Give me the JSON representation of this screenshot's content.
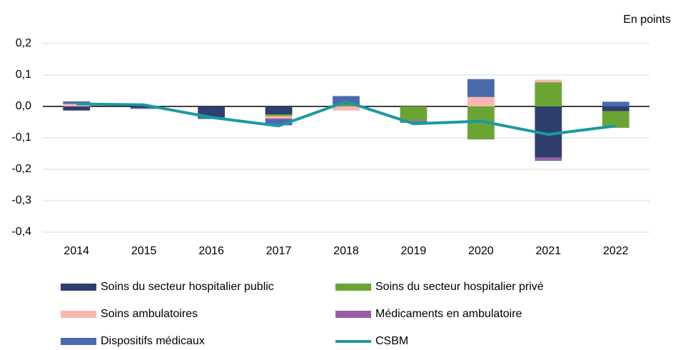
{
  "chart_data": {
    "type": "bar",
    "stacked": true,
    "unit_label": "En points",
    "categories": [
      "2014",
      "2015",
      "2016",
      "2017",
      "2018",
      "2019",
      "2020",
      "2021",
      "2022"
    ],
    "series": [
      {
        "name": "Soins du secteur hospitalier public",
        "color": "#2e3f6e",
        "values": [
          -0.013,
          -0.005,
          -0.035,
          -0.025,
          0,
          0,
          0,
          -0.163,
          -0.015
        ]
      },
      {
        "name": "Soins du secteur hospitalier privé",
        "color": "#6aa534",
        "values": [
          0,
          0,
          0,
          -0.006,
          0.005,
          -0.045,
          -0.105,
          0.077,
          -0.053
        ]
      },
      {
        "name": "Soins ambulatoires",
        "color": "#f8b8b0",
        "values": [
          0.008,
          0,
          0,
          -0.007,
          -0.013,
          0,
          0.03,
          0.008,
          0
        ]
      },
      {
        "name": "Médicaments en ambulatoire",
        "color": "#9b5ba5",
        "values": [
          0,
          0,
          0,
          -0.004,
          0,
          -0.003,
          0,
          -0.007,
          0
        ]
      },
      {
        "name": "Dispositifs médicaux",
        "color": "#4a6aab",
        "values": [
          0.008,
          -0.003,
          -0.005,
          -0.018,
          0.028,
          -0.004,
          0.057,
          -0.003,
          0.015
        ]
      },
      {
        "name": "CSBM",
        "type": "line",
        "color": "#1a9aa0",
        "values": [
          0.008,
          0.005,
          -0.035,
          -0.062,
          0.015,
          -0.055,
          -0.047,
          -0.089,
          -0.062
        ]
      }
    ],
    "ylim": [
      -0.4,
      0.2
    ],
    "yticks": [
      {
        "value": -0.4,
        "label": "-0,4"
      },
      {
        "value": -0.3,
        "label": "-0,3"
      },
      {
        "value": -0.2,
        "label": "-0,2"
      },
      {
        "value": -0.1,
        "label": "-0,1"
      },
      {
        "value": 0,
        "label": "0,0"
      },
      {
        "value": 0.1,
        "label": "0,1"
      },
      {
        "value": 0.2,
        "label": "0,2"
      }
    ],
    "grid": true,
    "legend": "bottom"
  }
}
